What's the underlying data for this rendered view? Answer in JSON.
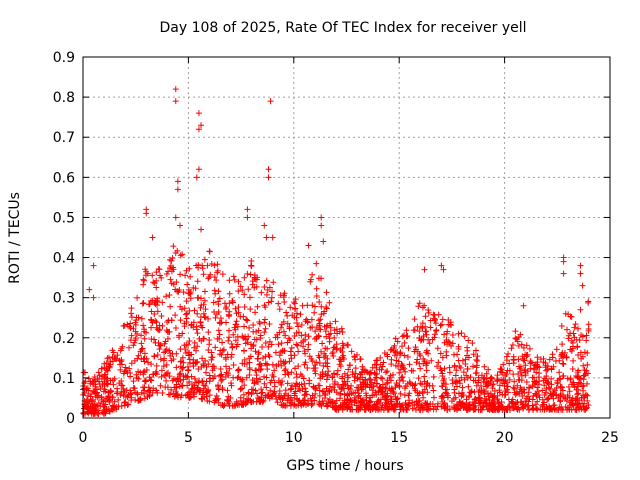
{
  "chart_data": {
    "type": "scatter",
    "title": "Day 108 of 2025, Rate Of TEC Index for receiver yell",
    "xlabel": "GPS time / hours",
    "ylabel": "ROTI / TECUs",
    "xlim": [
      0,
      25
    ],
    "ylim": [
      0,
      0.9
    ],
    "xticks": [
      0,
      5,
      10,
      15,
      20,
      25
    ],
    "xtick_labels": [
      "0",
      "5",
      "10",
      "15",
      "20",
      "25"
    ],
    "yticks": [
      0,
      0.1,
      0.2,
      0.3,
      0.4,
      0.5,
      0.6,
      0.7,
      0.8,
      0.9
    ],
    "ytick_labels": [
      "0",
      "0.1",
      "0.2",
      "0.3",
      "0.4",
      "0.5",
      "0.6",
      "0.7",
      "0.8",
      "0.9"
    ],
    "grid": true,
    "marker": "+",
    "color": "#ff0000",
    "series": [
      {
        "name": "ROTI",
        "envelope_hours": [
          0,
          0.5,
          1,
          1.5,
          2,
          2.5,
          3,
          3.5,
          4,
          4.5,
          5,
          5.5,
          6,
          6.5,
          7,
          7.5,
          8,
          8.5,
          9,
          9.5,
          10,
          10.5,
          11,
          11.5,
          12,
          12.5,
          13,
          13.5,
          14,
          14.5,
          15,
          15.5,
          16,
          16.5,
          17,
          17.5,
          18,
          18.5,
          19,
          19.5,
          20,
          20.5,
          21,
          21.5,
          22,
          22.5,
          23,
          23.5,
          24
        ],
        "envelope_upper": [
          0.12,
          0.1,
          0.14,
          0.18,
          0.25,
          0.3,
          0.42,
          0.38,
          0.4,
          0.45,
          0.38,
          0.4,
          0.42,
          0.38,
          0.35,
          0.36,
          0.4,
          0.35,
          0.38,
          0.32,
          0.3,
          0.28,
          0.4,
          0.32,
          0.26,
          0.2,
          0.16,
          0.14,
          0.15,
          0.17,
          0.24,
          0.22,
          0.3,
          0.28,
          0.28,
          0.24,
          0.22,
          0.2,
          0.14,
          0.1,
          0.14,
          0.22,
          0.2,
          0.16,
          0.15,
          0.18,
          0.3,
          0.22,
          0.3
        ],
        "envelope_lower": [
          0.01,
          0.01,
          0.01,
          0.02,
          0.03,
          0.04,
          0.05,
          0.06,
          0.06,
          0.05,
          0.05,
          0.05,
          0.04,
          0.03,
          0.03,
          0.03,
          0.04,
          0.04,
          0.04,
          0.03,
          0.03,
          0.03,
          0.03,
          0.03,
          0.02,
          0.02,
          0.02,
          0.02,
          0.02,
          0.02,
          0.02,
          0.02,
          0.02,
          0.02,
          0.02,
          0.02,
          0.02,
          0.02,
          0.02,
          0.02,
          0.02,
          0.02,
          0.02,
          0.02,
          0.02,
          0.02,
          0.02,
          0.02,
          0.02
        ],
        "outliers": [
          [
            0.3,
            0.32
          ],
          [
            0.5,
            0.38
          ],
          [
            0.5,
            0.3
          ],
          [
            3.0,
            0.52
          ],
          [
            3.0,
            0.51
          ],
          [
            3.3,
            0.45
          ],
          [
            4.4,
            0.82
          ],
          [
            4.4,
            0.79
          ],
          [
            4.5,
            0.59
          ],
          [
            4.5,
            0.57
          ],
          [
            4.4,
            0.5
          ],
          [
            4.6,
            0.48
          ],
          [
            5.5,
            0.76
          ],
          [
            5.5,
            0.72
          ],
          [
            5.6,
            0.73
          ],
          [
            5.5,
            0.62
          ],
          [
            5.4,
            0.6
          ],
          [
            5.6,
            0.47
          ],
          [
            7.8,
            0.52
          ],
          [
            7.8,
            0.5
          ],
          [
            8.6,
            0.48
          ],
          [
            8.9,
            0.79
          ],
          [
            8.8,
            0.62
          ],
          [
            8.8,
            0.6
          ],
          [
            8.7,
            0.45
          ],
          [
            9.0,
            0.45
          ],
          [
            10.7,
            0.43
          ],
          [
            11.3,
            0.5
          ],
          [
            11.3,
            0.48
          ],
          [
            11.4,
            0.44
          ],
          [
            16.2,
            0.37
          ],
          [
            17.0,
            0.38
          ],
          [
            17.1,
            0.37
          ],
          [
            22.8,
            0.4
          ],
          [
            22.8,
            0.39
          ],
          [
            22.8,
            0.36
          ],
          [
            23.6,
            0.38
          ],
          [
            23.6,
            0.36
          ],
          [
            23.7,
            0.33
          ],
          [
            23.6,
            0.27
          ],
          [
            22.9,
            0.26
          ],
          [
            20.9,
            0.28
          ]
        ]
      }
    ]
  }
}
